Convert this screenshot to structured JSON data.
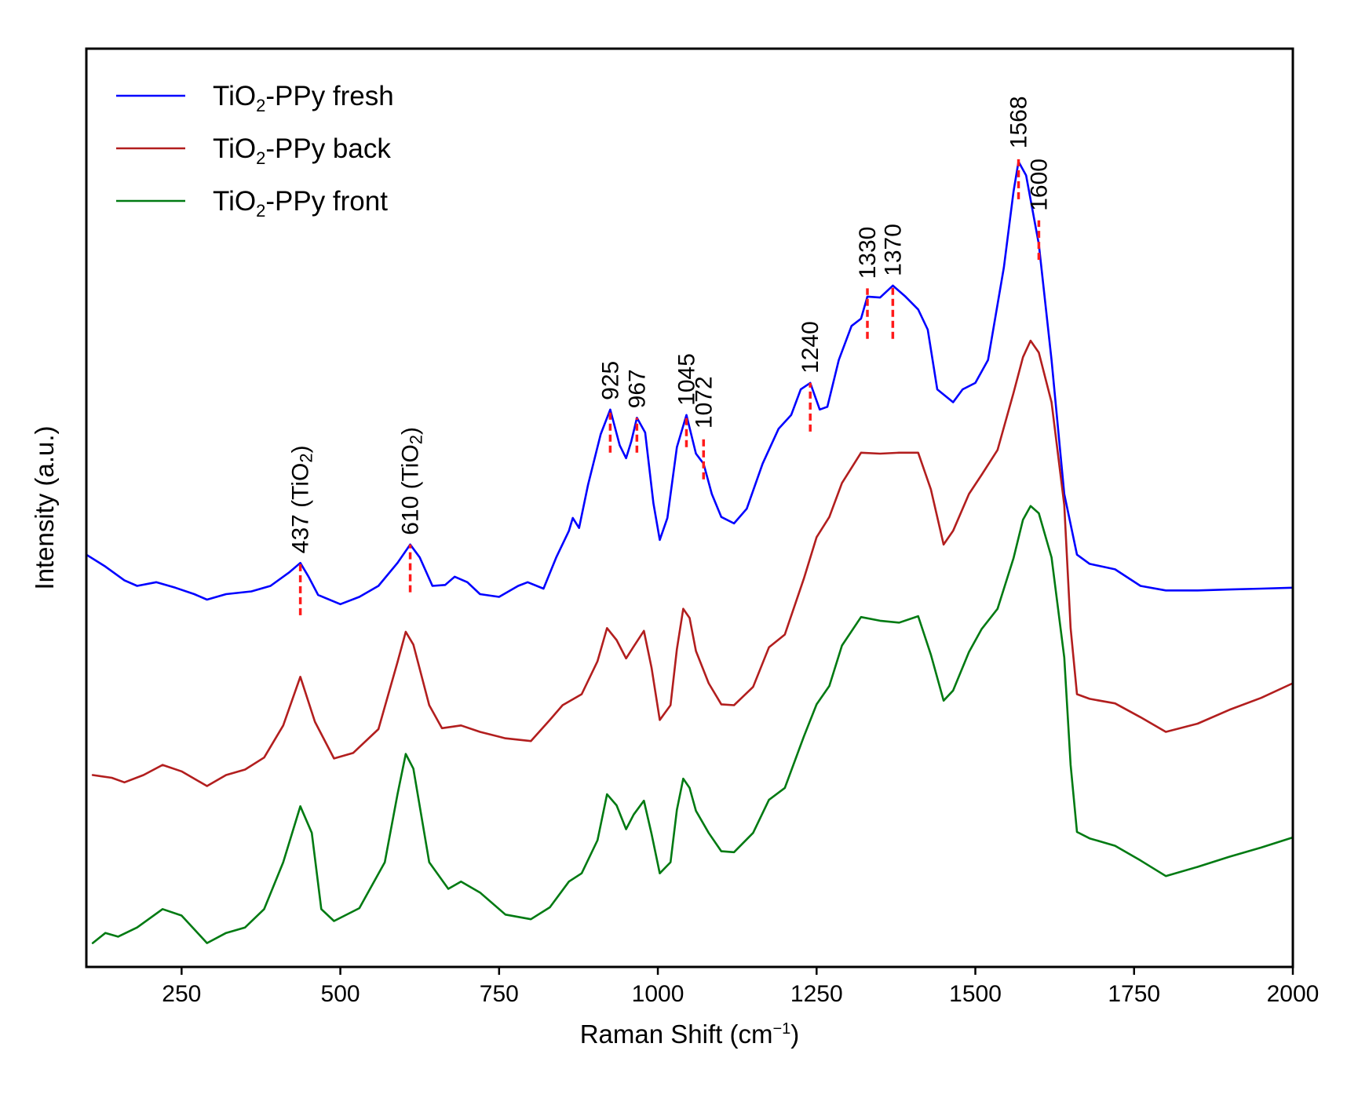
{
  "chart_data": {
    "type": "line",
    "title": "",
    "xlabel": "Raman Shift (cm",
    "xlabel_sup": "−1",
    "xlabel_close": ")",
    "ylabel": "Intensity (a.u.)",
    "xlim": [
      100,
      2000
    ],
    "ylim": [
      0,
      100
    ],
    "xticks": [
      250,
      500,
      750,
      1000,
      1250,
      1500,
      1750,
      2000
    ],
    "yticks_shown": false,
    "grid": false,
    "legend_position": "top-left",
    "series": [
      {
        "name": "TiO2-PPy fresh",
        "label_main": "TiO",
        "label_sub": "2",
        "label_rest": "-PPy fresh",
        "color": "#0000ff",
        "points": [
          [
            100,
            44.9
          ],
          [
            130,
            43.6
          ],
          [
            160,
            42.1
          ],
          [
            180,
            41.5
          ],
          [
            210,
            41.9
          ],
          [
            240,
            41.3
          ],
          [
            270,
            40.6
          ],
          [
            290,
            40.0
          ],
          [
            320,
            40.6
          ],
          [
            360,
            40.9
          ],
          [
            390,
            41.5
          ],
          [
            420,
            43.0
          ],
          [
            437,
            44.0
          ],
          [
            450,
            42.5
          ],
          [
            465,
            40.5
          ],
          [
            500,
            39.5
          ],
          [
            530,
            40.3
          ],
          [
            560,
            41.5
          ],
          [
            590,
            44.0
          ],
          [
            610,
            46.0
          ],
          [
            625,
            44.6
          ],
          [
            645,
            41.5
          ],
          [
            665,
            41.6
          ],
          [
            680,
            42.5
          ],
          [
            700,
            41.9
          ],
          [
            720,
            40.6
          ],
          [
            750,
            40.3
          ],
          [
            780,
            41.5
          ],
          [
            795,
            41.9
          ],
          [
            820,
            41.2
          ],
          [
            840,
            44.6
          ],
          [
            860,
            47.5
          ],
          [
            866,
            48.9
          ],
          [
            876,
            47.8
          ],
          [
            890,
            52.5
          ],
          [
            910,
            58.0
          ],
          [
            925,
            60.7
          ],
          [
            940,
            56.8
          ],
          [
            950,
            55.4
          ],
          [
            958,
            57.2
          ],
          [
            967,
            59.8
          ],
          [
            980,
            58.2
          ],
          [
            993,
            50.5
          ],
          [
            1003,
            46.5
          ],
          [
            1015,
            48.9
          ],
          [
            1030,
            56.6
          ],
          [
            1045,
            60.1
          ],
          [
            1060,
            55.9
          ],
          [
            1072,
            54.8
          ],
          [
            1085,
            51.5
          ],
          [
            1100,
            49.0
          ],
          [
            1120,
            48.3
          ],
          [
            1140,
            49.9
          ],
          [
            1165,
            54.8
          ],
          [
            1190,
            58.6
          ],
          [
            1210,
            60.1
          ],
          [
            1225,
            62.9
          ],
          [
            1240,
            63.6
          ],
          [
            1255,
            60.7
          ],
          [
            1267,
            61.0
          ],
          [
            1285,
            66.1
          ],
          [
            1305,
            69.8
          ],
          [
            1320,
            70.6
          ],
          [
            1330,
            73.0
          ],
          [
            1350,
            72.9
          ],
          [
            1370,
            74.2
          ],
          [
            1390,
            73.0
          ],
          [
            1410,
            71.6
          ],
          [
            1425,
            69.4
          ],
          [
            1440,
            62.9
          ],
          [
            1465,
            61.5
          ],
          [
            1480,
            62.9
          ],
          [
            1500,
            63.6
          ],
          [
            1520,
            66.1
          ],
          [
            1545,
            76.2
          ],
          [
            1560,
            84.4
          ],
          [
            1568,
            87.7
          ],
          [
            1580,
            86.2
          ],
          [
            1600,
            78.7
          ],
          [
            1620,
            66.1
          ],
          [
            1640,
            51.5
          ],
          [
            1660,
            44.9
          ],
          [
            1680,
            43.9
          ],
          [
            1720,
            43.3
          ],
          [
            1760,
            41.5
          ],
          [
            1800,
            41.0
          ],
          [
            1850,
            41.0
          ],
          [
            1900,
            41.1
          ],
          [
            1950,
            41.2
          ],
          [
            2000,
            41.3
          ]
        ]
      },
      {
        "name": "TiO2-PPy back",
        "label_main": "TiO",
        "label_sub": "2",
        "label_rest": "-PPy back",
        "color": "#b21e1e",
        "points": [
          [
            110,
            20.9
          ],
          [
            140,
            20.6
          ],
          [
            160,
            20.1
          ],
          [
            190,
            20.9
          ],
          [
            220,
            22.0
          ],
          [
            250,
            21.3
          ],
          [
            290,
            19.7
          ],
          [
            320,
            20.9
          ],
          [
            350,
            21.5
          ],
          [
            380,
            22.8
          ],
          [
            410,
            26.3
          ],
          [
            437,
            31.6
          ],
          [
            460,
            26.7
          ],
          [
            490,
            22.7
          ],
          [
            520,
            23.3
          ],
          [
            560,
            25.9
          ],
          [
            590,
            33.2
          ],
          [
            603,
            36.5
          ],
          [
            615,
            35.1
          ],
          [
            640,
            28.5
          ],
          [
            660,
            26.0
          ],
          [
            690,
            26.3
          ],
          [
            720,
            25.6
          ],
          [
            760,
            24.9
          ],
          [
            800,
            24.6
          ],
          [
            830,
            26.9
          ],
          [
            850,
            28.5
          ],
          [
            880,
            29.7
          ],
          [
            905,
            33.3
          ],
          [
            920,
            36.9
          ],
          [
            935,
            35.6
          ],
          [
            950,
            33.6
          ],
          [
            962,
            34.9
          ],
          [
            978,
            36.6
          ],
          [
            990,
            32.6
          ],
          [
            1003,
            26.9
          ],
          [
            1020,
            28.5
          ],
          [
            1030,
            34.6
          ],
          [
            1040,
            39.0
          ],
          [
            1050,
            38.0
          ],
          [
            1060,
            34.4
          ],
          [
            1080,
            30.9
          ],
          [
            1100,
            28.6
          ],
          [
            1120,
            28.5
          ],
          [
            1150,
            30.5
          ],
          [
            1175,
            34.8
          ],
          [
            1200,
            36.2
          ],
          [
            1230,
            42.3
          ],
          [
            1250,
            46.8
          ],
          [
            1270,
            49.0
          ],
          [
            1290,
            52.7
          ],
          [
            1320,
            56.0
          ],
          [
            1350,
            55.9
          ],
          [
            1380,
            56.0
          ],
          [
            1410,
            56.0
          ],
          [
            1430,
            52.0
          ],
          [
            1450,
            46.0
          ],
          [
            1465,
            47.5
          ],
          [
            1490,
            51.5
          ],
          [
            1510,
            53.6
          ],
          [
            1535,
            56.3
          ],
          [
            1560,
            62.5
          ],
          [
            1575,
            66.4
          ],
          [
            1587,
            68.2
          ],
          [
            1600,
            66.9
          ],
          [
            1620,
            61.5
          ],
          [
            1640,
            50.3
          ],
          [
            1650,
            36.9
          ],
          [
            1660,
            29.7
          ],
          [
            1680,
            29.2
          ],
          [
            1720,
            28.7
          ],
          [
            1760,
            27.2
          ],
          [
            1800,
            25.6
          ],
          [
            1850,
            26.5
          ],
          [
            1900,
            28.0
          ],
          [
            1950,
            29.3
          ],
          [
            2000,
            30.9
          ]
        ]
      },
      {
        "name": "TiO2-PPy front",
        "label_main": "TiO",
        "label_sub": "2",
        "label_rest": "-PPy front",
        "color": "#007a12",
        "points": [
          [
            110,
            2.6
          ],
          [
            130,
            3.7
          ],
          [
            150,
            3.3
          ],
          [
            180,
            4.3
          ],
          [
            220,
            6.3
          ],
          [
            250,
            5.6
          ],
          [
            290,
            2.6
          ],
          [
            320,
            3.7
          ],
          [
            350,
            4.3
          ],
          [
            380,
            6.3
          ],
          [
            410,
            11.4
          ],
          [
            437,
            17.5
          ],
          [
            455,
            14.6
          ],
          [
            470,
            6.3
          ],
          [
            490,
            5.0
          ],
          [
            530,
            6.4
          ],
          [
            570,
            11.4
          ],
          [
            590,
            18.8
          ],
          [
            603,
            23.2
          ],
          [
            615,
            21.6
          ],
          [
            640,
            11.4
          ],
          [
            670,
            8.5
          ],
          [
            690,
            9.3
          ],
          [
            720,
            8.1
          ],
          [
            760,
            5.7
          ],
          [
            800,
            5.2
          ],
          [
            830,
            6.5
          ],
          [
            860,
            9.3
          ],
          [
            880,
            10.2
          ],
          [
            905,
            13.8
          ],
          [
            920,
            18.8
          ],
          [
            935,
            17.6
          ],
          [
            950,
            15.0
          ],
          [
            962,
            16.6
          ],
          [
            978,
            18.1
          ],
          [
            990,
            14.5
          ],
          [
            1003,
            10.2
          ],
          [
            1020,
            11.4
          ],
          [
            1030,
            17.1
          ],
          [
            1040,
            20.5
          ],
          [
            1050,
            19.5
          ],
          [
            1060,
            17.0
          ],
          [
            1080,
            14.6
          ],
          [
            1100,
            12.6
          ],
          [
            1120,
            12.5
          ],
          [
            1150,
            14.6
          ],
          [
            1175,
            18.2
          ],
          [
            1200,
            19.5
          ],
          [
            1230,
            25.1
          ],
          [
            1250,
            28.6
          ],
          [
            1270,
            30.6
          ],
          [
            1290,
            35.0
          ],
          [
            1320,
            38.1
          ],
          [
            1350,
            37.7
          ],
          [
            1380,
            37.5
          ],
          [
            1410,
            38.2
          ],
          [
            1430,
            34.0
          ],
          [
            1450,
            29.0
          ],
          [
            1465,
            30.1
          ],
          [
            1490,
            34.3
          ],
          [
            1510,
            36.8
          ],
          [
            1535,
            39.0
          ],
          [
            1560,
            44.5
          ],
          [
            1575,
            48.7
          ],
          [
            1587,
            50.2
          ],
          [
            1600,
            49.4
          ],
          [
            1620,
            44.6
          ],
          [
            1640,
            33.7
          ],
          [
            1650,
            22.0
          ],
          [
            1660,
            14.7
          ],
          [
            1680,
            14.0
          ],
          [
            1720,
            13.2
          ],
          [
            1760,
            11.6
          ],
          [
            1800,
            9.9
          ],
          [
            1850,
            10.9
          ],
          [
            1900,
            12.0
          ],
          [
            1950,
            13.0
          ],
          [
            2000,
            14.1
          ]
        ]
      }
    ],
    "annotations": [
      {
        "x": 437,
        "y_from": 38.3,
        "y_to": 44.0,
        "label": "437 (TiO",
        "sub": "2",
        "close": ")"
      },
      {
        "x": 610,
        "y_from": 40.8,
        "y_to": 46.0,
        "label": "610 (TiO",
        "sub": "2",
        "close": ")"
      },
      {
        "x": 925,
        "y_from": 56.0,
        "y_to": 60.7,
        "label": "925"
      },
      {
        "x": 967,
        "y_from": 56.0,
        "y_to": 59.8,
        "label": "967"
      },
      {
        "x": 1045,
        "y_from": 56.6,
        "y_to": 60.1,
        "label": "1045"
      },
      {
        "x": 1072,
        "y_from": 53.1,
        "y_to": 57.6,
        "label": "1072"
      },
      {
        "x": 1240,
        "y_from": 58.3,
        "y_to": 63.6,
        "label": "1240"
      },
      {
        "x": 1330,
        "y_from": 68.4,
        "y_to": 73.9,
        "label": "1330"
      },
      {
        "x": 1370,
        "y_from": 68.4,
        "y_to": 74.2,
        "label": "1370"
      },
      {
        "x": 1568,
        "y_from": 83.6,
        "y_to": 88.1,
        "label": "1568"
      },
      {
        "x": 1600,
        "y_from": 77.0,
        "y_to": 81.3,
        "label": "1600"
      }
    ]
  }
}
